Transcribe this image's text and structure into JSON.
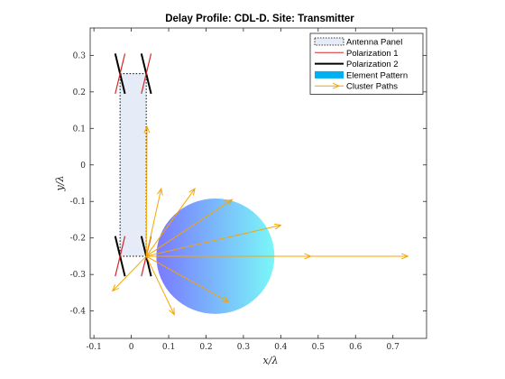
{
  "chart_data": {
    "type": "scatter",
    "title": "Delay Profile: CDL-D. Site: Transmitter",
    "xlabel": "x/λ",
    "ylabel": "y/λ",
    "xlim": [
      -0.11,
      0.79
    ],
    "ylim": [
      -0.475,
      0.375
    ],
    "xticks": [
      "-0.1",
      "0",
      "0.1",
      "0.2",
      "0.3",
      "0.4",
      "0.5",
      "0.6",
      "0.7"
    ],
    "yticks": [
      "0.3",
      "0.2",
      "0.1",
      "0",
      "-0.1",
      "-0.2",
      "-0.3",
      "-0.4"
    ],
    "grid": false,
    "legend_position": "top-right",
    "legend": [
      {
        "label": "Antenna Panel",
        "kind": "panel",
        "color": "#e6ebf8"
      },
      {
        "label": "Polarization 1",
        "kind": "line",
        "color": "#d62728"
      },
      {
        "label": "Polarization 2",
        "kind": "line",
        "color": "#000000"
      },
      {
        "label": "Element Pattern",
        "kind": "patch",
        "color": "#00b0f0"
      },
      {
        "label": "Cluster Paths",
        "kind": "arrow",
        "color": "#f5a500"
      }
    ],
    "antenna_panel": {
      "x": [
        -0.03,
        0.04
      ],
      "y": [
        -0.25,
        0.25
      ]
    },
    "elements": [
      {
        "x": -0.03,
        "y": 0.25
      },
      {
        "x": 0.04,
        "y": 0.25
      },
      {
        "x": -0.03,
        "y": -0.25
      },
      {
        "x": 0.04,
        "y": -0.25
      }
    ],
    "element_pattern": {
      "center": [
        0.225,
        -0.25
      ],
      "radius": 0.158,
      "color_from": "#7a79ff",
      "color_to": "#7af7f7"
    },
    "cluster_origin": [
      0.04,
      -0.25
    ],
    "cluster_paths": [
      {
        "x": 0.74,
        "y": -0.25,
        "arrow_at": [
          0.74,
          0.48
        ]
      },
      {
        "x": 0.4,
        "y": -0.165,
        "arrow_at": [
          0.4
        ]
      },
      {
        "x": 0.27,
        "y": -0.095,
        "arrow_at": [
          0.27
        ]
      },
      {
        "x": 0.17,
        "y": -0.065,
        "arrow_at": [
          0.17
        ]
      },
      {
        "x": 0.08,
        "y": -0.065,
        "arrow_at": [
          0.08
        ]
      },
      {
        "x": 0.042,
        "y": 0.105,
        "arrow_at": [
          0.042
        ]
      },
      {
        "x": 0.26,
        "y": -0.375,
        "arrow_at": [
          0.26
        ]
      },
      {
        "x": 0.115,
        "y": -0.41,
        "arrow_at": [
          0.115
        ]
      },
      {
        "x": -0.05,
        "y": -0.345,
        "arrow_at": [
          -0.05
        ]
      }
    ]
  }
}
